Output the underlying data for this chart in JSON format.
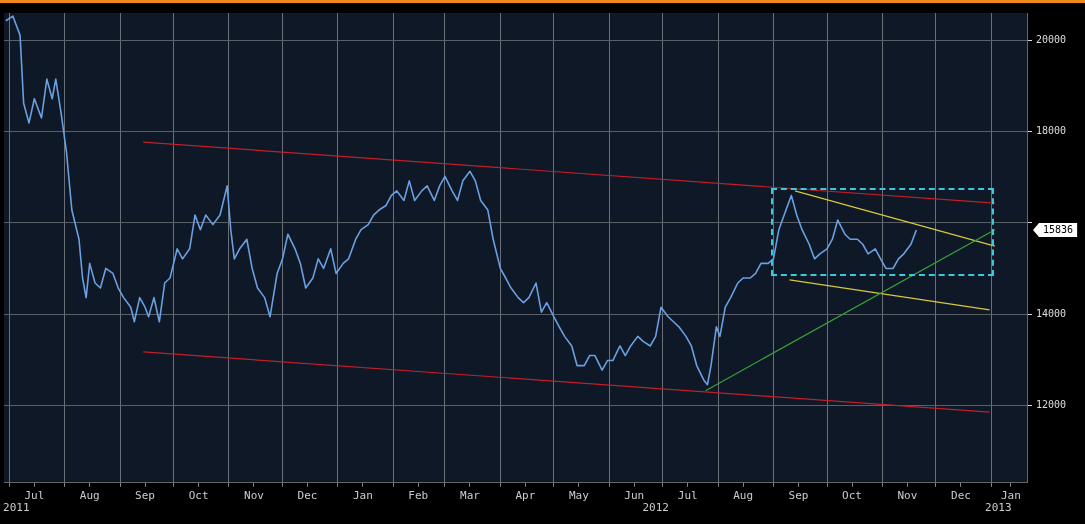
{
  "chart_data": {
    "type": "line",
    "xlim": [
      "2011-06-28",
      "2013-01-21"
    ],
    "ylim": [
      10300,
      20600
    ],
    "yticks": [
      12000,
      14000,
      {
        "value": 16000,
        "label": null
      },
      18000,
      20000
    ],
    "xticks": [
      {
        "value": "2011-07-01",
        "label": null
      },
      {
        "value": "2011-07-15",
        "label": "Jul"
      },
      {
        "value": "2011-08-01",
        "label": null
      },
      {
        "value": "2011-08-15",
        "label": "Aug"
      },
      {
        "value": "2011-09-01",
        "label": null
      },
      {
        "value": "2011-09-15",
        "label": "Sep"
      },
      {
        "value": "2011-10-01",
        "label": null
      },
      {
        "value": "2011-10-15",
        "label": "Oct"
      },
      {
        "value": "2011-11-01",
        "label": null
      },
      {
        "value": "2011-11-15",
        "label": "Nov"
      },
      {
        "value": "2011-12-01",
        "label": null
      },
      {
        "value": "2011-12-15",
        "label": "Dec"
      },
      {
        "value": "2012-01-01",
        "label": null
      },
      {
        "value": "2012-01-15",
        "label": "Jan"
      },
      {
        "value": "2012-02-01",
        "label": null
      },
      {
        "value": "2012-02-15",
        "label": "Feb"
      },
      {
        "value": "2012-03-01",
        "label": null
      },
      {
        "value": "2012-03-15",
        "label": "Mar"
      },
      {
        "value": "2012-04-01",
        "label": null
      },
      {
        "value": "2012-04-15",
        "label": "Apr"
      },
      {
        "value": "2012-05-01",
        "label": null
      },
      {
        "value": "2012-05-15",
        "label": "May"
      },
      {
        "value": "2012-06-01",
        "label": null
      },
      {
        "value": "2012-06-15",
        "label": "Jun"
      },
      {
        "value": "2012-07-01",
        "label": null
      },
      {
        "value": "2012-07-15",
        "label": "Jul"
      },
      {
        "value": "2012-08-01",
        "label": null
      },
      {
        "value": "2012-08-15",
        "label": "Aug"
      },
      {
        "value": "2012-09-01",
        "label": null
      },
      {
        "value": "2012-09-15",
        "label": "Sep"
      },
      {
        "value": "2012-10-01",
        "label": null
      },
      {
        "value": "2012-10-15",
        "label": "Oct"
      },
      {
        "value": "2012-11-01",
        "label": null
      },
      {
        "value": "2012-11-15",
        "label": "Nov"
      },
      {
        "value": "2012-12-01",
        "label": null
      },
      {
        "value": "2012-12-15",
        "label": "Dec"
      },
      {
        "value": "2013-01-01",
        "label": null
      },
      {
        "value": "2013-01-12",
        "label": "Jan"
      }
    ],
    "grid": true,
    "marker": "none",
    "line_style": "solid",
    "annotations": [
      "2011",
      "2012",
      "2013",
      "15836"
    ],
    "series": [
      {
        "color": "#6a9fe0",
        "x": [
          "2011-06-29",
          "2011-07-03",
          "2011-07-07",
          "2011-07-09",
          "2011-07-12",
          "2011-07-15",
          "2011-07-19",
          "2011-07-22",
          "2011-07-25",
          "2011-07-27",
          "2011-07-30",
          "2011-08-02",
          "2011-08-05",
          "2011-08-09",
          "2011-08-11",
          "2011-08-13",
          "2011-08-15",
          "2011-08-18",
          "2011-08-21",
          "2011-08-24",
          "2011-08-28",
          "2011-08-31",
          "2011-09-03",
          "2011-09-07",
          "2011-09-09",
          "2011-09-12",
          "2011-09-15",
          "2011-09-17",
          "2011-09-20",
          "2011-09-23",
          "2011-09-26",
          "2011-09-29",
          "2011-10-03",
          "2011-10-06",
          "2011-10-10",
          "2011-10-13",
          "2011-10-16",
          "2011-10-19",
          "2011-10-23",
          "2011-10-27",
          "2011-10-31",
          "2011-11-02",
          "2011-11-04",
          "2011-11-07",
          "2011-11-11",
          "2011-11-14",
          "2011-11-17",
          "2011-11-21",
          "2011-11-24",
          "2011-11-28",
          "2011-12-01",
          "2011-12-04",
          "2011-12-08",
          "2011-12-11",
          "2011-12-14",
          "2011-12-18",
          "2011-12-21",
          "2011-12-24",
          "2011-12-28",
          "2011-12-31",
          "2012-01-04",
          "2012-01-07",
          "2012-01-11",
          "2012-01-14",
          "2012-01-18",
          "2012-01-21",
          "2012-01-24",
          "2012-01-28",
          "2012-01-31",
          "2012-02-03",
          "2012-02-07",
          "2012-02-10",
          "2012-02-13",
          "2012-02-17",
          "2012-02-20",
          "2012-02-24",
          "2012-02-27",
          "2012-03-01",
          "2012-03-05",
          "2012-03-08",
          "2012-03-11",
          "2012-03-15",
          "2012-03-18",
          "2012-03-21",
          "2012-03-25",
          "2012-03-28",
          "2012-04-01",
          "2012-04-04",
          "2012-04-07",
          "2012-04-11",
          "2012-04-14",
          "2012-04-17",
          "2012-04-21",
          "2012-04-24",
          "2012-04-27",
          "2012-05-01",
          "2012-05-04",
          "2012-05-07",
          "2012-05-11",
          "2012-05-14",
          "2012-05-18",
          "2012-05-21",
          "2012-05-24",
          "2012-05-28",
          "2012-05-31",
          "2012-06-03",
          "2012-06-07",
          "2012-06-10",
          "2012-06-13",
          "2012-06-17",
          "2012-06-20",
          "2012-06-24",
          "2012-06-27",
          "2012-06-30",
          "2012-07-04",
          "2012-07-07",
          "2012-07-10",
          "2012-07-14",
          "2012-07-17",
          "2012-07-20",
          "2012-07-24",
          "2012-07-26",
          "2012-07-28",
          "2012-07-31",
          "2012-08-02",
          "2012-08-05",
          "2012-08-08",
          "2012-08-12",
          "2012-08-15",
          "2012-08-19",
          "2012-08-22",
          "2012-08-25",
          "2012-08-29",
          "2012-09-01",
          "2012-09-04",
          "2012-09-08",
          "2012-09-11",
          "2012-09-14",
          "2012-09-17",
          "2012-09-21",
          "2012-09-24",
          "2012-09-27",
          "2012-10-01",
          "2012-10-04",
          "2012-10-07",
          "2012-10-11",
          "2012-10-14",
          "2012-10-18",
          "2012-10-21",
          "2012-10-24",
          "2012-10-28",
          "2012-10-31",
          "2012-11-03",
          "2012-11-07",
          "2012-11-10",
          "2012-11-13",
          "2012-11-17",
          "2012-11-20"
        ],
        "values": [
          20430,
          20530,
          20110,
          18620,
          18190,
          18720,
          18300,
          19150,
          18720,
          19150,
          18400,
          17550,
          16280,
          15640,
          14790,
          14360,
          15110,
          14680,
          14570,
          15000,
          14890,
          14570,
          14360,
          14150,
          13830,
          14360,
          14150,
          13940,
          14360,
          13830,
          14680,
          14790,
          15430,
          15210,
          15430,
          16170,
          15850,
          16170,
          15960,
          16170,
          16810,
          15850,
          15210,
          15430,
          15640,
          15000,
          14570,
          14360,
          13940,
          14890,
          15210,
          15750,
          15430,
          15110,
          14570,
          14790,
          15210,
          15000,
          15430,
          14890,
          15110,
          15210,
          15640,
          15850,
          15960,
          16170,
          16280,
          16380,
          16600,
          16700,
          16490,
          16920,
          16490,
          16700,
          16810,
          16490,
          16810,
          17020,
          16700,
          16490,
          16920,
          17130,
          16920,
          16490,
          16280,
          15640,
          15000,
          14790,
          14570,
          14360,
          14250,
          14360,
          14680,
          14040,
          14250,
          13940,
          13720,
          13510,
          13300,
          12870,
          12870,
          13090,
          13090,
          12770,
          12980,
          12980,
          13300,
          13090,
          13300,
          13510,
          13400,
          13300,
          13510,
          14150,
          13940,
          13830,
          13720,
          13510,
          13300,
          12870,
          12550,
          12450,
          12870,
          13720,
          13510,
          14150,
          14360,
          14680,
          14790,
          14790,
          14890,
          15110,
          15110,
          15210,
          15850,
          16280,
          16600,
          16170,
          15850,
          15530,
          15210,
          15320,
          15430,
          15640,
          16060,
          15750,
          15640,
          15640,
          15530,
          15320,
          15430,
          15210,
          15000,
          15000,
          15210,
          15320,
          15530,
          15840
        ]
      },
      {
        "type": "line",
        "color": "#c0202a",
        "x": [
          "2011-09-14",
          "2013-01-03"
        ],
        "values": [
          17770,
          16430
        ]
      },
      {
        "type": "line",
        "color": "#c0202a",
        "x": [
          "2011-09-14",
          "2012-12-31"
        ],
        "values": [
          13170,
          11850
        ]
      },
      {
        "type": "line",
        "color": "#3aa03a",
        "x": [
          "2012-07-25",
          "2013-01-03"
        ],
        "values": [
          12320,
          15850
        ]
      },
      {
        "type": "line",
        "color": "#d8c83a",
        "x": [
          "2012-09-13",
          "2013-01-03"
        ],
        "values": [
          16700,
          15490
        ]
      },
      {
        "type": "line",
        "color": "#d8c83a",
        "x": [
          "2012-09-10",
          "2012-12-31"
        ],
        "values": [
          14750,
          14090
        ]
      }
    ]
  }
}
